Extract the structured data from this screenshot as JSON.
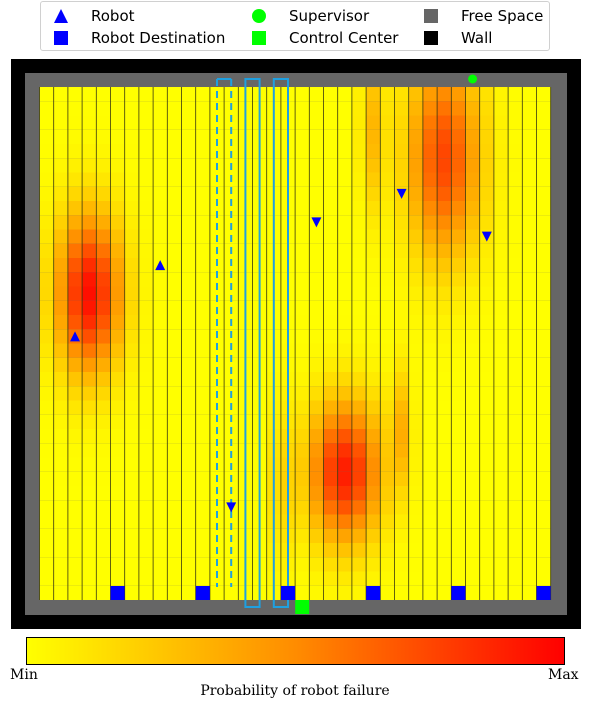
{
  "legend": {
    "items": [
      {
        "label": "Robot",
        "symbol": "triangle",
        "color": "#0000ff"
      },
      {
        "label": "Robot Destination",
        "symbol": "square",
        "color": "#0000ff"
      },
      {
        "label": "Supervisor",
        "symbol": "circle",
        "color": "#00ff00"
      },
      {
        "label": "Control Center",
        "symbol": "square",
        "color": "#00ff00"
      },
      {
        "label": "Free Space",
        "symbol": "square",
        "color": "#666666"
      },
      {
        "label": "Wall",
        "symbol": "square",
        "color": "#000000"
      }
    ]
  },
  "colorbar": {
    "min_label": "Min",
    "max_label": "Max",
    "title": "Probability of robot failure",
    "colors": [
      "#ffff00",
      "#ff8c00",
      "#ff0000"
    ]
  },
  "grid": {
    "columns": 36,
    "rows": 36,
    "hotspots": [
      {
        "col": 3.5,
        "row": 14.5,
        "sigma_c": 1.6,
        "sigma_r": 4.0,
        "peak": 0.95
      },
      {
        "col": 21.5,
        "row": 27.0,
        "sigma_c": 1.8,
        "sigma_r": 3.5,
        "peak": 0.9
      },
      {
        "col": 28.5,
        "row": 5.0,
        "sigma_c": 1.8,
        "sigma_r": 5.0,
        "peak": 0.75
      },
      {
        "col": 25.5,
        "row": 24.0,
        "sigma_c": 0.5,
        "sigma_r": 3.0,
        "peak": 0.3
      },
      {
        "col": 23.5,
        "row": 3.0,
        "sigma_c": 0.6,
        "sigma_r": 4.0,
        "peak": 0.3
      },
      {
        "col": 17.0,
        "row": 28.0,
        "sigma_c": 0.5,
        "sigma_r": 4.0,
        "peak": 0.2
      }
    ],
    "robots": [
      {
        "col": 2.5,
        "row": 17.5,
        "dir": "up"
      },
      {
        "col": 8.5,
        "row": 12.5,
        "dir": "up"
      },
      {
        "col": 19.5,
        "row": 9.5,
        "dir": "down"
      },
      {
        "col": 25.5,
        "row": 7.5,
        "dir": "down"
      },
      {
        "col": 31.5,
        "row": 10.5,
        "dir": "down"
      },
      {
        "col": 13.5,
        "row": 29.5,
        "dir": "down"
      }
    ],
    "destinations": [
      5.5,
      11.5,
      17.5,
      23.5,
      29.5,
      35.5
    ],
    "supervisor": {
      "col": 30.5,
      "row": -0.5
    },
    "control_center": {
      "col": 18.5
    },
    "aisles": [
      {
        "col_start": 12.5,
        "col_end": 13.5,
        "dashed": true
      },
      {
        "col_start": 14.5,
        "col_end": 15.5,
        "dashed": false
      },
      {
        "col_start": 16.5,
        "col_end": 17.5,
        "dashed": false
      }
    ]
  }
}
